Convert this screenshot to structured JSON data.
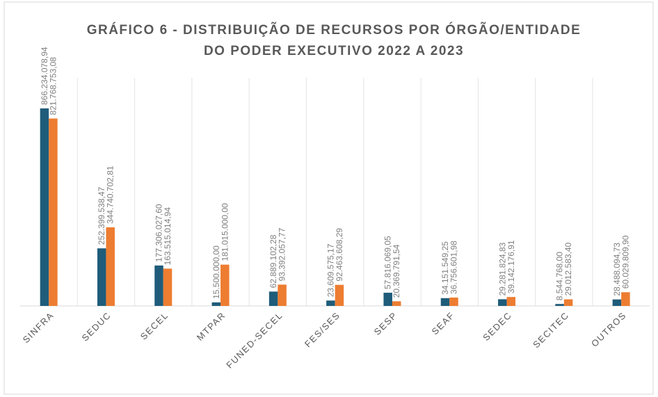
{
  "chart_data": {
    "type": "bar",
    "title": [
      "GRÁFICO 6 - DISTRIBUIÇÃO DE RECURSOS POR  ÓRGÃO/ENTIDADE",
      "DO PODER EXECUTIVO 2022 A 2023"
    ],
    "categories": [
      "SINFRA",
      "SEDUC",
      "SECEL",
      "MTPAR",
      "FUNED-SECEL",
      "FES/SES",
      "SESP",
      "SEAF",
      "SEDEC",
      "SECITEC",
      "OUTROS"
    ],
    "series": [
      {
        "color": "#1f5c7a",
        "values": [
          866234078.94,
          252399538.47,
          177306027.6,
          15500000.0,
          62889102.28,
          23609575.17,
          57816069.05,
          34151549.25,
          29281824.83,
          8544768.0,
          28488094.73
        ],
        "value_labels": [
          "866.234.078,94",
          "252.399.538,47",
          "177.306.027,60",
          "15.500.000,00",
          "62.889.102,28",
          "23.609.575,17",
          "57.816.069,05",
          "34.151.549,25",
          "29.281.824,83",
          "8.544.768,00",
          "28.488.094,73"
        ]
      },
      {
        "color": "#ed7d31",
        "values": [
          821768753.08,
          344740702.81,
          163515014.94,
          181015000.0,
          93392057.77,
          92463608.29,
          20369791.54,
          36756601.98,
          39142176.91,
          29012583.4,
          60029809.9
        ],
        "value_labels": [
          "821.768.753,08",
          "344.740.702,81",
          "163.515.014,94",
          "181.015.000,00",
          "93.392.057,77",
          "92.463.608,29",
          "20.369.791,54",
          "36.756.601,98",
          "39.142.176,91",
          "29.012.583,40",
          "60.029.809,90"
        ]
      }
    ],
    "ylim": [
      0,
      1000000000
    ]
  }
}
